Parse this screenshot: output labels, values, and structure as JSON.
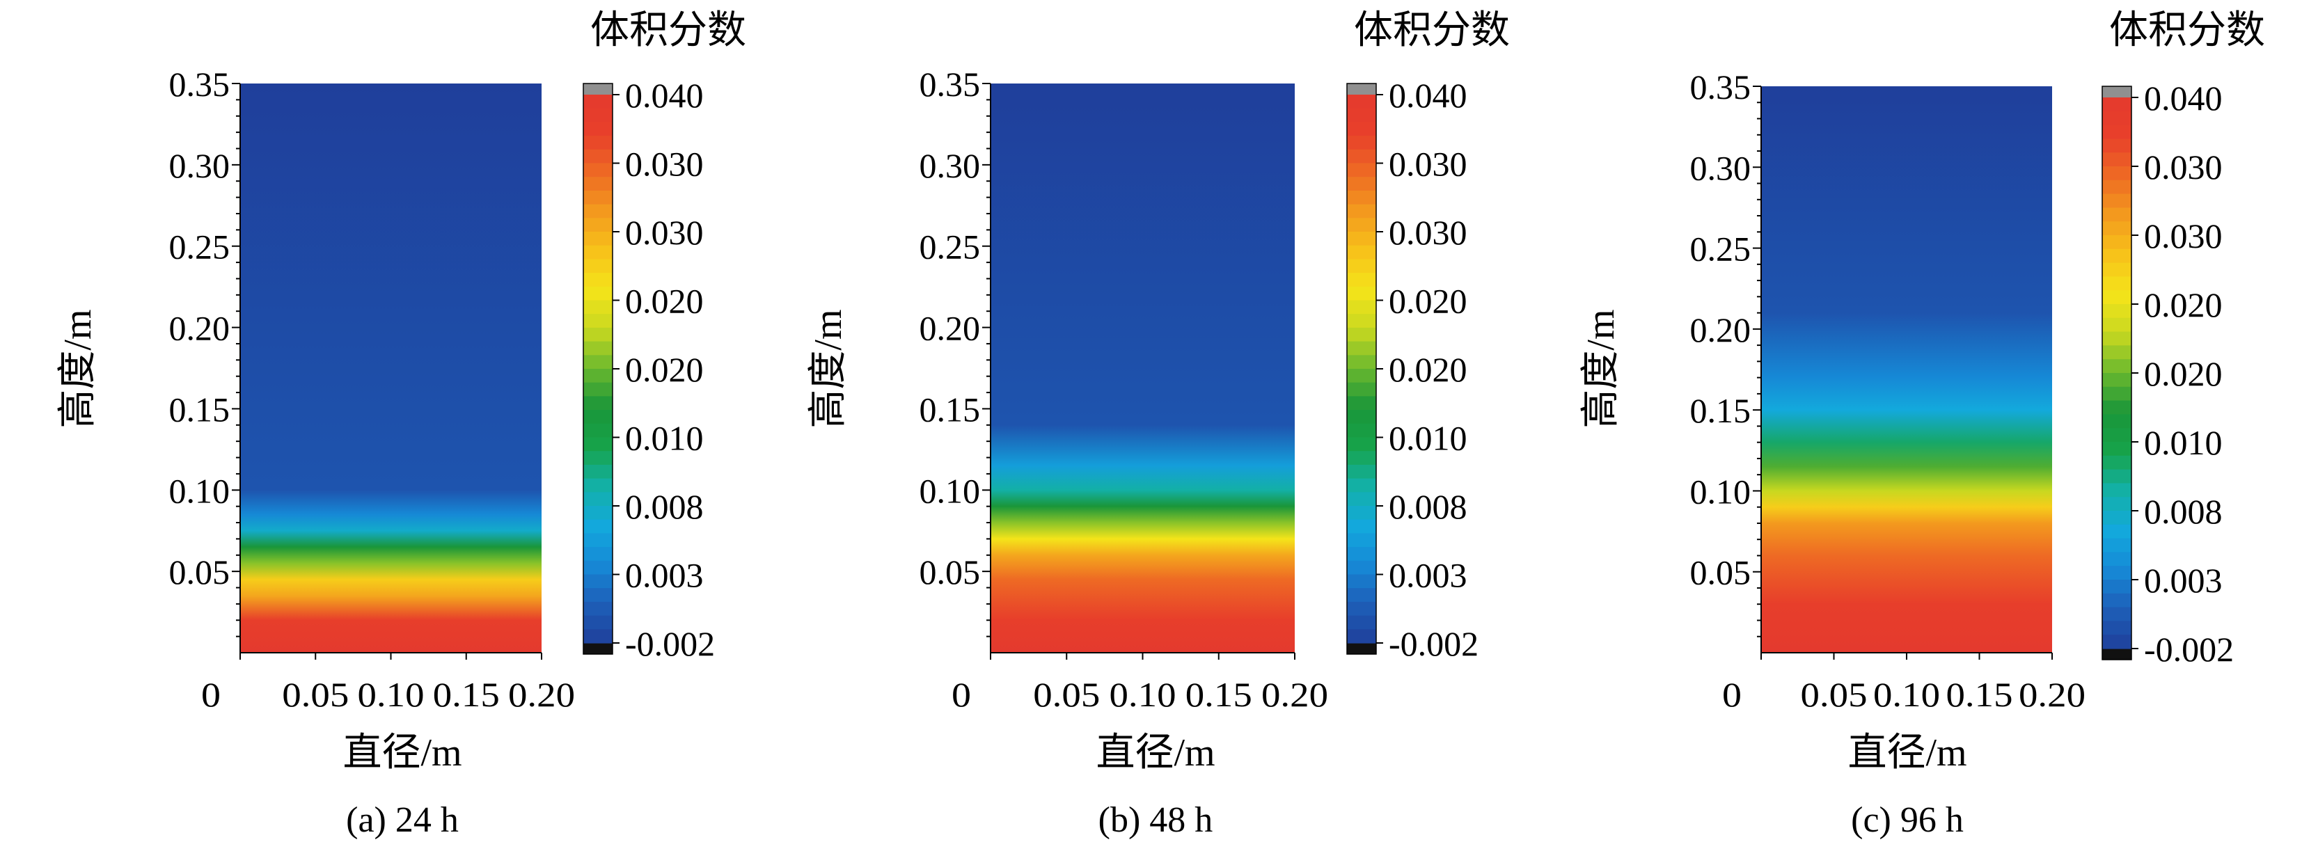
{
  "chart_data": [
    {
      "type": "heatmap",
      "caption": "(a) 24 h",
      "xlabel": "直径/m",
      "ylabel": "高度/m",
      "xlim": [
        0,
        0.2
      ],
      "ylim": [
        0,
        0.35
      ],
      "x_ticks": [
        "0",
        "0.05",
        "0.10",
        "0.15",
        "0.20"
      ],
      "y_ticks": [
        "0.05",
        "0.10",
        "0.15",
        "0.20",
        "0.25",
        "0.30",
        "0.35"
      ],
      "colorbar": {
        "title": "体积分数",
        "labels": [
          "0.040",
          "0.030",
          "0.030",
          "0.020",
          "0.020",
          "0.010",
          "0.008",
          "0.003",
          "-0.002"
        ],
        "range": [
          -0.002,
          0.04
        ]
      },
      "profile": {
        "height": [
          0,
          0.02,
          0.035,
          0.045,
          0.055,
          0.065,
          0.075,
          0.085,
          0.1,
          0.35
        ],
        "volume_fraction": [
          0.04,
          0.038,
          0.03,
          0.027,
          0.02,
          0.016,
          0.008,
          0.004,
          0.0,
          -0.002
        ]
      }
    },
    {
      "type": "heatmap",
      "caption": "(b) 48 h",
      "xlabel": "直径/m",
      "ylabel": "高度/m",
      "xlim": [
        0,
        0.2
      ],
      "ylim": [
        0,
        0.35
      ],
      "x_ticks": [
        "0",
        "0.05",
        "0.10",
        "0.15",
        "0.20"
      ],
      "y_ticks": [
        "0.05",
        "0.10",
        "0.15",
        "0.20",
        "0.25",
        "0.30",
        "0.35"
      ],
      "colorbar": {
        "title": "体积分数",
        "labels": [
          "0.040",
          "0.030",
          "0.030",
          "0.020",
          "0.020",
          "0.010",
          "0.008",
          "0.003",
          "-0.002"
        ],
        "range": [
          -0.002,
          0.04
        ]
      },
      "profile": {
        "height": [
          0,
          0.02,
          0.045,
          0.06,
          0.07,
          0.08,
          0.09,
          0.1,
          0.115,
          0.14,
          0.35
        ],
        "volume_fraction": [
          0.04,
          0.038,
          0.034,
          0.03,
          0.025,
          0.02,
          0.016,
          0.01,
          0.006,
          0.0,
          -0.002
        ]
      }
    },
    {
      "type": "heatmap",
      "caption": "(c) 96 h",
      "xlabel": "直径/m",
      "ylabel": "高度/m",
      "xlim": [
        0,
        0.2
      ],
      "ylim": [
        0,
        0.35
      ],
      "x_ticks": [
        "0",
        "0.05",
        "0.10",
        "0.15",
        "0.20"
      ],
      "y_ticks": [
        "0.05",
        "0.10",
        "0.15",
        "0.20",
        "0.25",
        "0.30",
        "0.35"
      ],
      "colorbar": {
        "title": "体积分数",
        "labels": [
          "0.040",
          "0.030",
          "0.030",
          "0.020",
          "0.020",
          "0.010",
          "0.008",
          "0.003",
          "-0.002"
        ],
        "range": [
          -0.002,
          0.04
        ]
      },
      "profile": {
        "height": [
          0,
          0.03,
          0.06,
          0.08,
          0.09,
          0.1,
          0.115,
          0.13,
          0.15,
          0.17,
          0.21,
          0.35
        ],
        "volume_fraction": [
          0.04,
          0.038,
          0.034,
          0.031,
          0.027,
          0.022,
          0.018,
          0.012,
          0.007,
          0.004,
          0.0,
          -0.002
        ]
      }
    }
  ],
  "colors": {
    "colormap": [
      "#1f3f9b",
      "#1e5fb8",
      "#1689d6",
      "#13a9dc",
      "#13b0a6",
      "#17a34a",
      "#1a9639",
      "#6ab82e",
      "#c8d820",
      "#f4e41a",
      "#f7c21a",
      "#f39a1e",
      "#ee6a24",
      "#e8402a",
      "#e43a2e"
    ],
    "over": "#909090",
    "under": "#111111",
    "axis": "#000000"
  }
}
